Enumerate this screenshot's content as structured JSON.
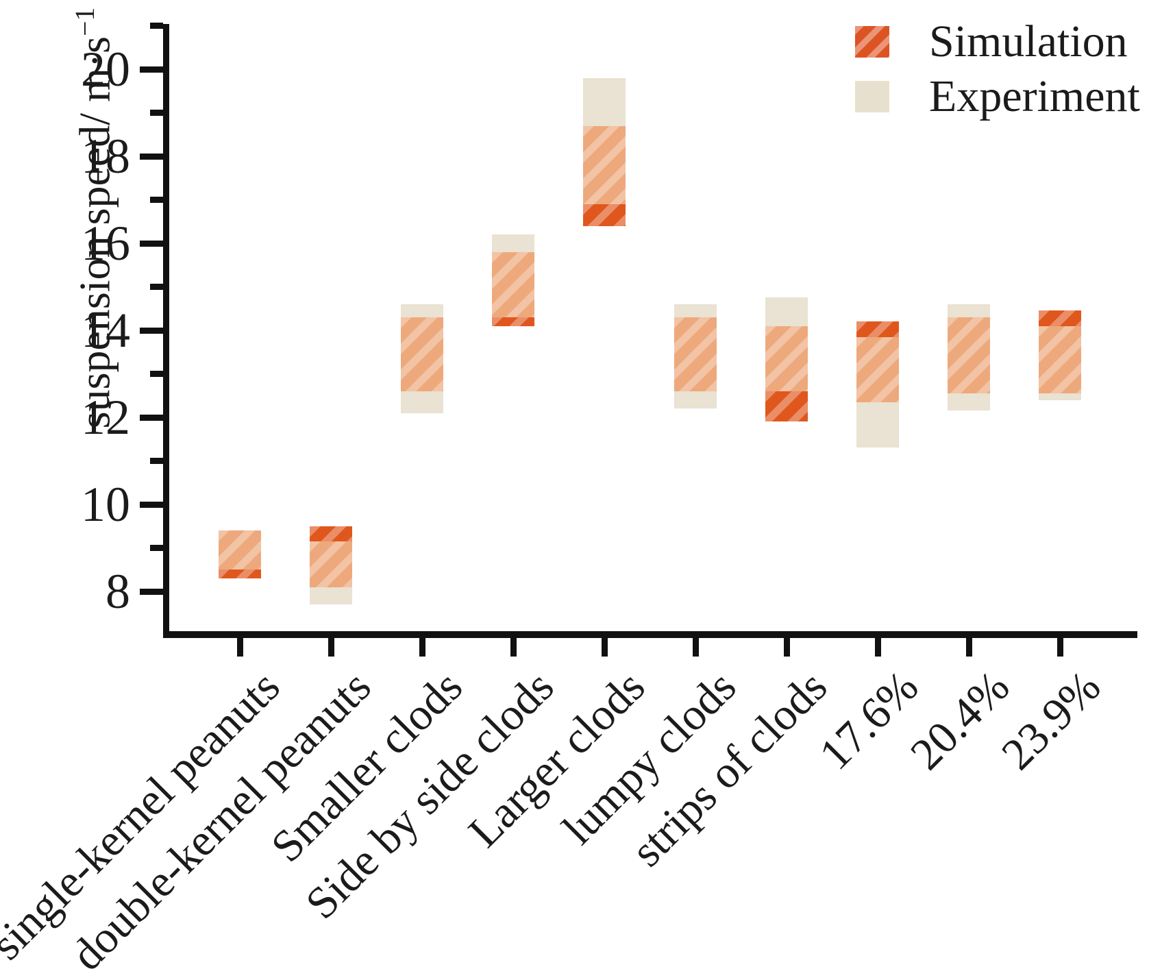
{
  "chart_data": {
    "type": "bar",
    "subtype": "floating-range-bars",
    "title": "",
    "xlabel": "",
    "ylabel_main": "suspension speed/ m·s",
    "ylabel_sup": "−1",
    "ylim": [
      7.05,
      21.3
    ],
    "yticks_major": [
      8,
      10,
      12,
      14,
      16,
      18,
      20
    ],
    "yticks_minor": [
      9,
      11,
      13,
      15,
      17,
      19,
      21
    ],
    "grid": false,
    "legend_position": "top-right",
    "categories": [
      "single-kernel peanuts",
      "double-kernel peanuts",
      "Smaller clods",
      "Side by side clods",
      "Larger clods",
      "lumpy clods",
      "strips of clods",
      "17.6%",
      "20.4%",
      "23.9%"
    ],
    "series": [
      {
        "name": "Simulation",
        "ranges": [
          [
            8.3,
            9.4
          ],
          [
            8.1,
            9.5
          ],
          [
            12.6,
            14.3
          ],
          [
            14.1,
            15.8
          ],
          [
            16.4,
            18.7
          ],
          [
            12.6,
            14.3
          ],
          [
            11.9,
            14.1
          ],
          [
            12.35,
            14.2
          ],
          [
            12.55,
            14.3
          ],
          [
            12.55,
            14.45
          ]
        ]
      },
      {
        "name": "Experiment",
        "ranges": [
          [
            8.5,
            9.4
          ],
          [
            7.7,
            9.15
          ],
          [
            12.1,
            14.6
          ],
          [
            14.3,
            16.2
          ],
          [
            16.9,
            19.8
          ],
          [
            12.2,
            14.6
          ],
          [
            12.6,
            14.75
          ],
          [
            11.3,
            13.85
          ],
          [
            12.15,
            14.6
          ],
          [
            12.4,
            14.1
          ]
        ]
      }
    ],
    "colors": {
      "simulation": "#e0571e",
      "experiment": "#eae2d2",
      "overlap": "#eda97c",
      "axis": "#111111"
    }
  },
  "legend": {
    "items": [
      {
        "label": "Simulation"
      },
      {
        "label": "Experiment"
      }
    ]
  }
}
